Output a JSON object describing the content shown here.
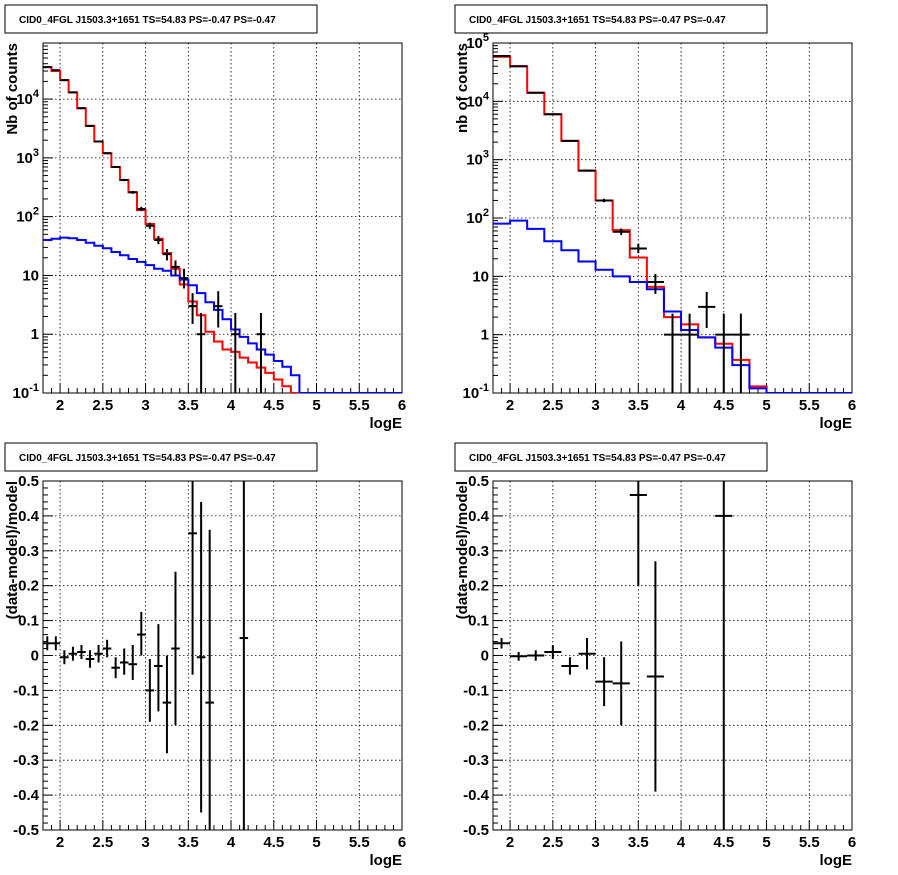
{
  "chart_data": [
    {
      "panel": "top-left",
      "type": "line",
      "title": "CID0_4FGL J1503.3+1651 TS=54.83 PS=-0.47 PS=-0.47",
      "xlabel": "logE",
      "ylabel": "Nb of counts",
      "xlim": [
        1.8,
        6.0
      ],
      "ylim": [
        0.1,
        90000
      ],
      "yscale": "log",
      "grid": true,
      "x_ticks": [
        "2",
        "2.5",
        "3",
        "3.5",
        "4",
        "4.5",
        "5",
        "5.5",
        "6"
      ],
      "y_ticks": [
        "10^-1",
        "1",
        "10",
        "10^2",
        "10^3",
        "10^4"
      ],
      "bin_edges": [
        1.8,
        1.9,
        2.0,
        2.1,
        2.2,
        2.3,
        2.4,
        2.5,
        2.6,
        2.7,
        2.8,
        2.9,
        3.0,
        3.1,
        3.2,
        3.3,
        3.4,
        3.5,
        3.6,
        3.7,
        3.8,
        3.9,
        4.0,
        4.1,
        4.2,
        4.3,
        4.4,
        4.5,
        4.6,
        4.7,
        4.8,
        4.9,
        5.0,
        5.1,
        5.2,
        5.3,
        5.4,
        5.5,
        5.6,
        5.7,
        5.8,
        5.9,
        6.0
      ],
      "series": [
        {
          "color": "#ff0000",
          "style": "histogram",
          "values": [
            35000,
            30000,
            21000,
            13000,
            7000,
            3500,
            1900,
            1200,
            700,
            420,
            260,
            130,
            75,
            42,
            24,
            13,
            7,
            3.6,
            2.1,
            1.1,
            0.75,
            0.55,
            0.5,
            0.4,
            0.33,
            0.27,
            0.22,
            0.17,
            0.13,
            0.1,
            0.08,
            0.07,
            0.07,
            0.07,
            0.07,
            0.07,
            0.07,
            0.07,
            0.07,
            0.07,
            0.07,
            0.07
          ]
        },
        {
          "color": "#0000ff",
          "style": "histogram",
          "values": [
            40,
            42,
            44,
            43,
            40,
            36,
            32,
            29,
            25,
            22,
            19,
            17,
            15,
            13,
            12,
            10,
            8.5,
            6.8,
            5,
            3.5,
            2.6,
            1.8,
            1.2,
            0.9,
            0.7,
            0.55,
            0.45,
            0.35,
            0.28,
            0.2,
            0.1,
            0.1,
            0.1,
            0.1,
            0.1,
            0.1,
            0.1,
            0.1,
            0.1,
            0.1,
            0.1,
            0.1
          ]
        },
        {
          "color": "#000000",
          "style": "points",
          "points": [
            {
              "x": 1.85,
              "y": 35000,
              "lo": 34000,
              "hi": 36000
            },
            {
              "x": 1.95,
              "y": 31000,
              "lo": 30000,
              "hi": 32000
            },
            {
              "x": 2.05,
              "y": 21000,
              "lo": 20500,
              "hi": 21500
            },
            {
              "x": 2.15,
              "y": 13000,
              "lo": 12600,
              "hi": 13400
            },
            {
              "x": 2.25,
              "y": 7000,
              "lo": 6800,
              "hi": 7200
            },
            {
              "x": 2.35,
              "y": 3500,
              "lo": 3400,
              "hi": 3600
            },
            {
              "x": 2.45,
              "y": 1900,
              "lo": 1850,
              "hi": 1950
            },
            {
              "x": 2.55,
              "y": 1200,
              "lo": 1150,
              "hi": 1250
            },
            {
              "x": 2.65,
              "y": 700,
              "lo": 670,
              "hi": 730
            },
            {
              "x": 2.75,
              "y": 420,
              "lo": 400,
              "hi": 440
            },
            {
              "x": 2.85,
              "y": 260,
              "lo": 245,
              "hi": 275
            },
            {
              "x": 2.95,
              "y": 135,
              "lo": 124,
              "hi": 147
            },
            {
              "x": 3.05,
              "y": 70,
              "lo": 62,
              "hi": 79
            },
            {
              "x": 3.15,
              "y": 40,
              "lo": 34,
              "hi": 47
            },
            {
              "x": 3.25,
              "y": 23,
              "lo": 18,
              "hi": 28
            },
            {
              "x": 3.35,
              "y": 14,
              "lo": 10,
              "hi": 18
            },
            {
              "x": 3.45,
              "y": 9,
              "lo": 6,
              "hi": 13
            },
            {
              "x": 3.55,
              "y": 3,
              "lo": 1.5,
              "hi": 5
            },
            {
              "x": 3.65,
              "y": 1,
              "lo": 0.1,
              "hi": 2.3
            },
            {
              "x": 3.85,
              "y": 3,
              "lo": 1.3,
              "hi": 5.4
            },
            {
              "x": 4.05,
              "y": 1,
              "lo": 0.1,
              "hi": 2.3
            },
            {
              "x": 4.35,
              "y": 1,
              "lo": 0.1,
              "hi": 2.3
            }
          ]
        }
      ]
    },
    {
      "panel": "top-right",
      "type": "line",
      "title": "CID0_4FGL J1503.3+1651 TS=54.83 PS=-0.47 PS=-0.47",
      "xlabel": "logE",
      "ylabel": "nb of counts",
      "xlim": [
        1.8,
        6.0
      ],
      "ylim": [
        0.1,
        100000
      ],
      "yscale": "log",
      "grid": true,
      "x_ticks": [
        "2",
        "2.5",
        "3",
        "3.5",
        "4",
        "4.5",
        "5",
        "5.5",
        "6"
      ],
      "y_ticks": [
        "10^-1",
        "1",
        "10",
        "10^2",
        "10^3",
        "10^4",
        "10^5"
      ],
      "bin_edges": [
        1.8,
        2.0,
        2.2,
        2.4,
        2.6,
        2.8,
        3.0,
        3.2,
        3.4,
        3.6,
        3.8,
        4.0,
        4.2,
        4.4,
        4.6,
        4.8,
        5.0,
        5.2,
        5.4,
        5.6,
        5.8,
        6.0
      ],
      "series": [
        {
          "color": "#ff0000",
          "style": "histogram",
          "values": [
            58000,
            40000,
            14000,
            6000,
            2100,
            650,
            200,
            62,
            21,
            6.6,
            2.0,
            1.5,
            0.9,
            0.7,
            0.37,
            0.13,
            0.09,
            0.09,
            0.09,
            0.09,
            0.09
          ]
        },
        {
          "color": "#0000ff",
          "style": "histogram",
          "values": [
            80,
            90,
            65,
            40,
            28,
            18,
            13,
            10,
            8,
            6,
            2.5,
            1.2,
            0.9,
            0.6,
            0.3,
            0.12,
            0.09,
            0.09,
            0.09,
            0.09,
            0.09
          ]
        },
        {
          "color": "#000000",
          "style": "points",
          "points": [
            {
              "x": 1.9,
              "y": 60000,
              "lo": 59000,
              "hi": 61000
            },
            {
              "x": 2.1,
              "y": 40000,
              "lo": 39500,
              "hi": 40500
            },
            {
              "x": 2.3,
              "y": 14000,
              "lo": 13700,
              "hi": 14300
            },
            {
              "x": 2.5,
              "y": 6000,
              "lo": 5850,
              "hi": 6150
            },
            {
              "x": 2.7,
              "y": 2100,
              "lo": 2050,
              "hi": 2150
            },
            {
              "x": 2.9,
              "y": 650,
              "lo": 625,
              "hi": 675
            },
            {
              "x": 3.1,
              "y": 200,
              "lo": 186,
              "hi": 214
            },
            {
              "x": 3.3,
              "y": 58,
              "lo": 51,
              "hi": 66
            },
            {
              "x": 3.5,
              "y": 30,
              "lo": 25,
              "hi": 36
            },
            {
              "x": 3.7,
              "y": 8,
              "lo": 5,
              "hi": 11
            },
            {
              "x": 3.9,
              "y": 1,
              "lo": 0.1,
              "hi": 2.3
            },
            {
              "x": 4.1,
              "y": 1,
              "lo": 0.1,
              "hi": 2.3
            },
            {
              "x": 4.3,
              "y": 3,
              "lo": 1.3,
              "hi": 5.4
            },
            {
              "x": 4.5,
              "y": 1,
              "lo": 0.1,
              "hi": 2.3
            },
            {
              "x": 4.7,
              "y": 1,
              "lo": 0.1,
              "hi": 2.3
            }
          ]
        }
      ]
    },
    {
      "panel": "bottom-left",
      "type": "scatter",
      "title": "CID0_4FGL J1503.3+1651 TS=54.83 PS=-0.47 PS=-0.47",
      "xlabel": "logE",
      "ylabel": "(data-model)/model",
      "xlim": [
        1.8,
        6.0
      ],
      "ylim": [
        -0.5,
        0.5
      ],
      "yscale": "linear",
      "grid": true,
      "x_ticks": [
        "2",
        "2.5",
        "3",
        "3.5",
        "4",
        "4.5",
        "5",
        "5.5",
        "6"
      ],
      "y_ticks": [
        "-0.5",
        "-0.4",
        "-0.3",
        "-0.2",
        "-0.1",
        "0",
        "0.1",
        "0.2",
        "0.3",
        "0.4",
        "0.5"
      ],
      "bin_width": 0.1,
      "series": [
        {
          "color": "#000000",
          "style": "points",
          "points": [
            {
              "x": 1.85,
              "y": 0.035,
              "lo": 0.015,
              "hi": 0.055
            },
            {
              "x": 1.95,
              "y": 0.035,
              "lo": 0.015,
              "hi": 0.055
            },
            {
              "x": 2.05,
              "y": -0.005,
              "lo": -0.025,
              "hi": 0.015
            },
            {
              "x": 2.15,
              "y": 0.005,
              "lo": -0.015,
              "hi": 0.025
            },
            {
              "x": 2.25,
              "y": 0.01,
              "lo": -0.01,
              "hi": 0.03
            },
            {
              "x": 2.35,
              "y": -0.01,
              "lo": -0.035,
              "hi": 0.015
            },
            {
              "x": 2.45,
              "y": 0.005,
              "lo": -0.02,
              "hi": 0.03
            },
            {
              "x": 2.55,
              "y": 0.02,
              "lo": -0.005,
              "hi": 0.045
            },
            {
              "x": 2.65,
              "y": -0.035,
              "lo": -0.065,
              "hi": -0.005
            },
            {
              "x": 2.75,
              "y": -0.02,
              "lo": -0.055,
              "hi": 0.02
            },
            {
              "x": 2.85,
              "y": -0.025,
              "lo": -0.07,
              "hi": 0.03
            },
            {
              "x": 2.95,
              "y": 0.06,
              "lo": 0.0,
              "hi": 0.125
            },
            {
              "x": 3.05,
              "y": -0.1,
              "lo": -0.19,
              "hi": -0.01
            },
            {
              "x": 3.15,
              "y": -0.03,
              "lo": -0.16,
              "hi": 0.09
            },
            {
              "x": 3.25,
              "y": -0.135,
              "lo": -0.28,
              "hi": 0.0
            },
            {
              "x": 3.35,
              "y": 0.02,
              "lo": -0.2,
              "hi": 0.24
            },
            {
              "x": 3.55,
              "y": 0.35,
              "lo": -0.055,
              "hi": 0.5
            },
            {
              "x": 3.65,
              "y": -0.005,
              "lo": -0.45,
              "hi": 0.44
            },
            {
              "x": 3.75,
              "y": -0.135,
              "lo": -0.5,
              "hi": 0.36
            },
            {
              "x": 4.15,
              "y": 0.05,
              "lo": -0.5,
              "hi": 0.5
            }
          ]
        }
      ]
    },
    {
      "panel": "bottom-right",
      "type": "scatter",
      "title": "CID0_4FGL J1503.3+1651 TS=54.83 PS=-0.47 PS=-0.47",
      "xlabel": "logE",
      "ylabel": "(data-model)/model",
      "xlim": [
        1.8,
        6.0
      ],
      "ylim": [
        -0.5,
        0.5
      ],
      "yscale": "linear",
      "grid": true,
      "x_ticks": [
        "2",
        "2.5",
        "3",
        "3.5",
        "4",
        "4.5",
        "5",
        "5.5",
        "6"
      ],
      "y_ticks": [
        "-0.5",
        "-0.4",
        "-0.3",
        "-0.2",
        "-0.1",
        "0",
        "0.1",
        "0.2",
        "0.3",
        "0.4",
        "0.5"
      ],
      "bin_width": 0.2,
      "series": [
        {
          "color": "#000000",
          "style": "points",
          "points": [
            {
              "x": 1.9,
              "y": 0.035,
              "lo": 0.02,
              "hi": 0.05
            },
            {
              "x": 2.1,
              "y": -0.002,
              "lo": -0.015,
              "hi": 0.01
            },
            {
              "x": 2.3,
              "y": 0.0,
              "lo": -0.015,
              "hi": 0.015
            },
            {
              "x": 2.5,
              "y": 0.01,
              "lo": -0.01,
              "hi": 0.03
            },
            {
              "x": 2.7,
              "y": -0.03,
              "lo": -0.055,
              "hi": -0.005
            },
            {
              "x": 2.9,
              "y": 0.005,
              "lo": -0.04,
              "hi": 0.05
            },
            {
              "x": 3.1,
              "y": -0.075,
              "lo": -0.145,
              "hi": -0.005
            },
            {
              "x": 3.3,
              "y": -0.08,
              "lo": -0.2,
              "hi": 0.04
            },
            {
              "x": 3.5,
              "y": 0.46,
              "lo": 0.2,
              "hi": 0.5
            },
            {
              "x": 3.7,
              "y": -0.06,
              "lo": -0.39,
              "hi": 0.27
            },
            {
              "x": 4.5,
              "y": 0.4,
              "lo": -0.5,
              "hi": 0.5
            }
          ]
        }
      ]
    }
  ]
}
